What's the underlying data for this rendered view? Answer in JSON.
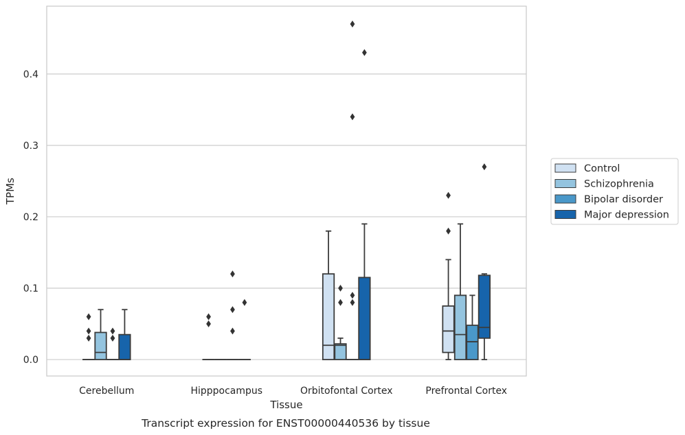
{
  "chart_data": {
    "type": "box",
    "title": "",
    "caption": "Transcript expression for ENST00000440536 by tissue",
    "xlabel": "Tissue",
    "ylabel": "TPMs",
    "ylim": [
      -0.023,
      0.495
    ],
    "yticks": [
      0.0,
      0.1,
      0.2,
      0.3,
      0.4
    ],
    "ytick_labels": [
      "0.0",
      "0.1",
      "0.2",
      "0.3",
      "0.4"
    ],
    "grid": "horizontal",
    "legend_position": "right",
    "categories": [
      "Cerebellum",
      "Hipppocampus",
      "Orbitofontal Cortex",
      "Prefrontal Cortex"
    ],
    "series": [
      {
        "name": "Control",
        "color": "#d0e1f2",
        "boxes": [
          {
            "q1": 0,
            "median": 0,
            "q3": 0,
            "whisker_low": 0,
            "whisker_high": 0,
            "outliers": [
              0.03,
              0.04,
              0.06
            ]
          },
          {
            "q1": 0,
            "median": 0,
            "q3": 0,
            "whisker_low": 0,
            "whisker_high": 0,
            "outliers": [
              0.05,
              0.06
            ]
          },
          {
            "q1": 0,
            "median": 0.02,
            "q3": 0.12,
            "whisker_low": 0,
            "whisker_high": 0.18,
            "outliers": []
          },
          {
            "q1": 0.01,
            "median": 0.04,
            "q3": 0.075,
            "whisker_low": 0,
            "whisker_high": 0.14,
            "outliers": [
              0.18,
              0.23
            ]
          }
        ]
      },
      {
        "name": "Schizophrenia",
        "color": "#94c4df",
        "boxes": [
          {
            "q1": 0,
            "median": 0.01,
            "q3": 0.038,
            "whisker_low": 0,
            "whisker_high": 0.07,
            "outliers": []
          },
          {
            "q1": 0,
            "median": 0,
            "q3": 0,
            "whisker_low": 0,
            "whisker_high": 0,
            "outliers": []
          },
          {
            "q1": 0,
            "median": 0.02,
            "q3": 0.022,
            "whisker_low": 0,
            "whisker_high": 0.03,
            "outliers": [
              0.08,
              0.1
            ]
          },
          {
            "q1": 0,
            "median": 0.035,
            "q3": 0.09,
            "whisker_low": 0,
            "whisker_high": 0.19,
            "outliers": []
          }
        ]
      },
      {
        "name": "Bipolar disorder",
        "color": "#4a98c9",
        "boxes": [
          {
            "q1": 0,
            "median": 0,
            "q3": 0,
            "whisker_low": 0,
            "whisker_high": 0,
            "outliers": [
              0.03,
              0.04
            ]
          },
          {
            "q1": 0,
            "median": 0,
            "q3": 0,
            "whisker_low": 0,
            "whisker_high": 0,
            "outliers": [
              0.04,
              0.07,
              0.12
            ]
          },
          {
            "q1": 0,
            "median": 0,
            "q3": 0,
            "whisker_low": 0,
            "whisker_high": 0,
            "outliers": [
              0.08,
              0.09,
              0.34,
              0.47
            ]
          },
          {
            "q1": 0,
            "median": 0.025,
            "q3": 0.048,
            "whisker_low": 0,
            "whisker_high": 0.09,
            "outliers": []
          }
        ]
      },
      {
        "name": "Major depression",
        "color": "#1764ab",
        "boxes": [
          {
            "q1": 0,
            "median": 0,
            "q3": 0.035,
            "whisker_low": 0,
            "whisker_high": 0.07,
            "outliers": []
          },
          {
            "q1": 0,
            "median": 0,
            "q3": 0,
            "whisker_low": 0,
            "whisker_high": 0,
            "outliers": [
              0.08
            ]
          },
          {
            "q1": 0,
            "median": 0,
            "q3": 0.115,
            "whisker_low": 0,
            "whisker_high": 0.19,
            "outliers": [
              0.43
            ]
          },
          {
            "q1": 0.03,
            "median": 0.045,
            "q3": 0.118,
            "whisker_low": 0,
            "whisker_high": 0.12,
            "outliers": [
              0.27
            ]
          }
        ]
      }
    ]
  }
}
